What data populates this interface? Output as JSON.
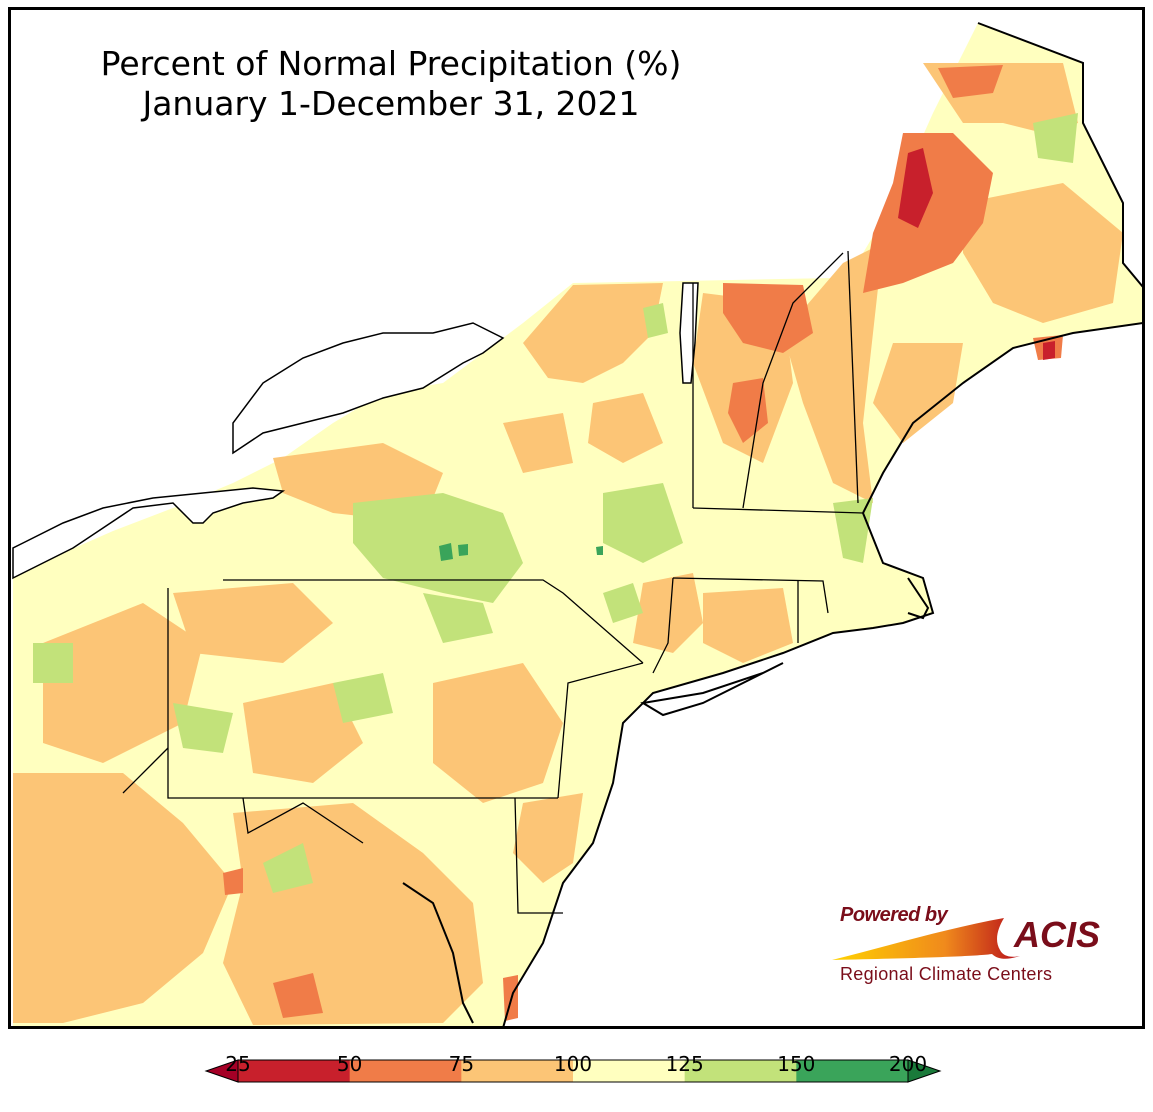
{
  "title": {
    "line1": "Percent of Normal Precipitation (%)",
    "line2": "January 1-December 31, 2021"
  },
  "logo": {
    "powered_by": "Powered by",
    "acis": "ACIS",
    "subtitle": "Regional Climate Centers"
  },
  "legend": {
    "ticks": [
      "25",
      "50",
      "75",
      "100",
      "125",
      "150",
      "200"
    ],
    "bins": [
      {
        "min": 25,
        "max": 50,
        "color": "#c8202c"
      },
      {
        "min": 50,
        "max": 75,
        "color": "#f07c48"
      },
      {
        "min": 75,
        "max": 100,
        "color": "#fcc576"
      },
      {
        "min": 100,
        "max": 125,
        "color": "#ffffbf"
      },
      {
        "min": 125,
        "max": 150,
        "color": "#c2e27a"
      },
      {
        "min": 150,
        "max": 200,
        "color": "#3aa45a"
      }
    ],
    "under_color": "#a50026",
    "over_color": "#1a7a3a"
  },
  "map": {
    "region": "Northeast United States",
    "background_color": "#ffffff",
    "land_base_color": "#ffffbf"
  }
}
